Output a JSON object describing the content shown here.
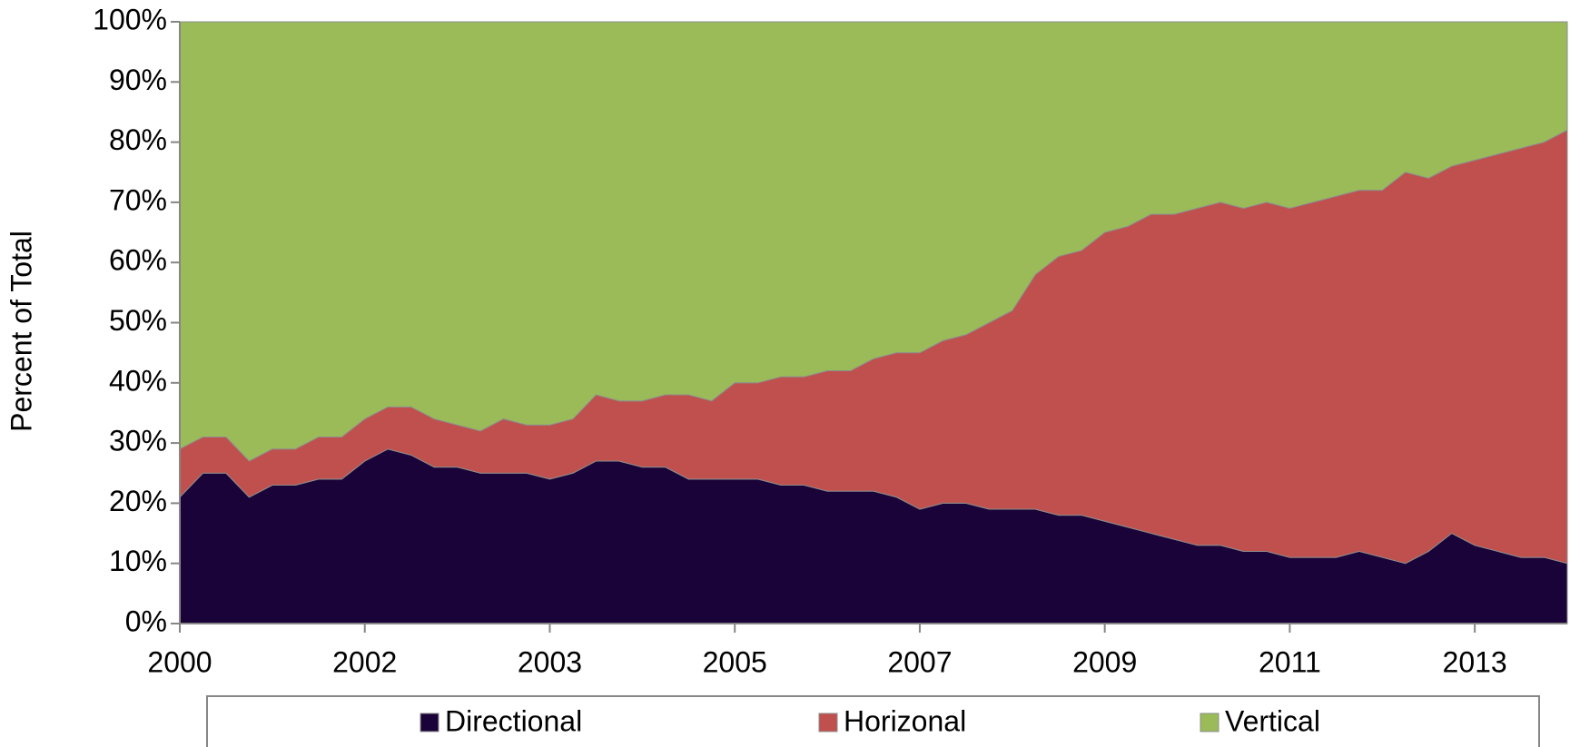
{
  "chart_data": {
    "type": "stacked_area",
    "y_label": "Percent of Total",
    "categories": [
      "2000",
      null,
      null,
      null,
      null,
      null,
      null,
      null,
      "2002",
      null,
      null,
      null,
      null,
      null,
      null,
      null,
      "2003",
      null,
      null,
      null,
      null,
      null,
      null,
      null,
      "2005",
      null,
      null,
      null,
      null,
      null,
      null,
      null,
      "2007",
      null,
      null,
      null,
      null,
      null,
      null,
      null,
      "2009",
      null,
      null,
      null,
      null,
      null,
      null,
      null,
      "2011",
      null,
      null,
      null,
      null,
      null,
      null,
      null,
      "2013",
      null,
      null,
      null,
      null
    ],
    "series": [
      {
        "name": "Directional",
        "color": "#1a0338",
        "values": [
          21,
          25,
          25,
          21,
          23,
          23,
          24,
          24,
          27,
          29,
          28,
          26,
          26,
          25,
          25,
          25,
          24,
          25,
          27,
          27,
          26,
          26,
          24,
          24,
          24,
          24,
          23,
          23,
          22,
          22,
          22,
          21,
          19,
          20,
          20,
          19,
          19,
          19,
          18,
          18,
          17,
          16,
          15,
          14,
          13,
          13,
          12,
          12,
          11,
          11,
          11,
          12,
          11,
          10,
          12,
          15,
          13,
          12,
          11,
          11,
          10
        ]
      },
      {
        "name": "Horizonal",
        "color": "#c0504d",
        "values": [
          8,
          6,
          6,
          6,
          6,
          6,
          7,
          7,
          7,
          7,
          8,
          8,
          7,
          7,
          9,
          8,
          9,
          9,
          11,
          10,
          11,
          12,
          14,
          13,
          16,
          16,
          18,
          18,
          20,
          20,
          22,
          24,
          26,
          27,
          28,
          31,
          33,
          39,
          43,
          44,
          48,
          50,
          53,
          54,
          56,
          57,
          57,
          58,
          58,
          59,
          60,
          60,
          61,
          65,
          62,
          61,
          64,
          66,
          68,
          69,
          72
        ]
      },
      {
        "name": "Vertical",
        "color": "#9bbb59",
        "values": [
          71,
          69,
          69,
          73,
          71,
          71,
          69,
          69,
          66,
          64,
          64,
          66,
          67,
          68,
          66,
          67,
          67,
          66,
          62,
          63,
          63,
          62,
          62,
          63,
          60,
          60,
          59,
          59,
          58,
          58,
          56,
          55,
          55,
          53,
          52,
          50,
          48,
          42,
          39,
          38,
          35,
          34,
          32,
          32,
          31,
          30,
          31,
          30,
          31,
          30,
          29,
          28,
          28,
          25,
          26,
          24,
          23,
          22,
          21,
          20,
          18
        ]
      }
    ],
    "ylim": [
      0,
      100
    ],
    "yticks": [
      {
        "value": 0,
        "label": "0%"
      },
      {
        "value": 10,
        "label": "10%"
      },
      {
        "value": 20,
        "label": "20%"
      },
      {
        "value": 30,
        "label": "30%"
      },
      {
        "value": 40,
        "label": "40%"
      },
      {
        "value": 50,
        "label": "50%"
      },
      {
        "value": 60,
        "label": "60%"
      },
      {
        "value": 70,
        "label": "70%"
      },
      {
        "value": 80,
        "label": "80%"
      },
      {
        "value": 90,
        "label": "90%"
      },
      {
        "value": 100,
        "label": "100%"
      }
    ],
    "legend": "bottom"
  }
}
